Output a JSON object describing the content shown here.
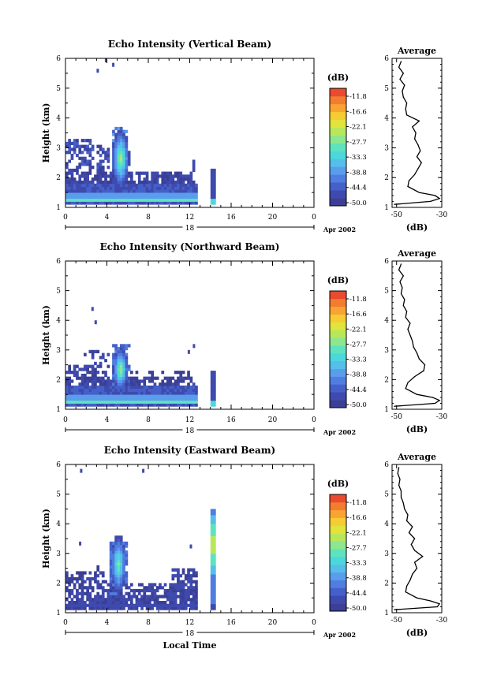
{
  "figure": {
    "xlabel": "Local Time",
    "date_label": "Apr 2002",
    "day_label": "18",
    "cbar_unit": "(dB)",
    "avg_title": "Average",
    "avg_xlabel": "(dB)"
  },
  "chart_data": [
    {
      "type": "heatmap",
      "title": "Echo Intensity (Vertical Beam)",
      "xlabel": "",
      "ylabel": "Height (km)",
      "xlim": [
        0,
        24
      ],
      "ylim": [
        1,
        6
      ],
      "x_ticks": [
        "0",
        "4",
        "8",
        "12",
        "16",
        "20",
        "0"
      ],
      "y_ticks": [
        "1",
        "2",
        "3",
        "4",
        "5",
        "6"
      ],
      "colorbar": {
        "unit": "(dB)",
        "tick_labels": [
          "-11.8",
          "-16.6",
          "-22.1",
          "-27.7",
          "-33.3",
          "-38.8",
          "-44.4",
          "-50.0"
        ],
        "range": [
          -50.0,
          -11.8
        ]
      },
      "data_extent": {
        "time_range_h": [
          0,
          14.4
        ],
        "height_range_km": [
          1.1,
          4.6
        ]
      },
      "peak": {
        "time_h": 5.2,
        "height_km": 2.6,
        "intensity_db": -27.7
      },
      "average_profile": {
        "title": "Average",
        "xlabel": "(dB)",
        "x_ticks": [
          "-50",
          "-30"
        ],
        "xlim": [
          -52,
          -30
        ],
        "heights_km": [
          1.1,
          1.2,
          1.3,
          1.4,
          1.5,
          1.7,
          1.9,
          2.1,
          2.3,
          2.5,
          2.7,
          2.9,
          3.1,
          3.3,
          3.5,
          3.7,
          3.9,
          4.1,
          4.3,
          4.5,
          4.7,
          4.9,
          5.1,
          5.3,
          5.5,
          5.7,
          5.9
        ],
        "values_db": [
          -51,
          -35,
          -31,
          -33,
          -40,
          -45,
          -44.5,
          -42,
          -40.5,
          -39,
          -41,
          -39.5,
          -40.5,
          -42,
          -41.5,
          -43,
          -40,
          -45.5,
          -46,
          -45.5,
          -47,
          -47.5,
          -46.5,
          -48.5,
          -47,
          -49,
          -48
        ]
      }
    },
    {
      "type": "heatmap",
      "title": "Echo Intensity (Northward Beam)",
      "xlabel": "",
      "ylabel": "Height (km)",
      "xlim": [
        0,
        24
      ],
      "ylim": [
        1,
        6
      ],
      "x_ticks": [
        "0",
        "4",
        "8",
        "12",
        "16",
        "20",
        "0"
      ],
      "y_ticks": [
        "1",
        "2",
        "3",
        "4",
        "5",
        "6"
      ],
      "colorbar": {
        "unit": "(dB)",
        "tick_labels": [
          "-11.8",
          "-16.6",
          "-22.1",
          "-27.7",
          "-33.3",
          "-38.8",
          "-44.4",
          "-50.0"
        ],
        "range": [
          -50.0,
          -11.8
        ]
      },
      "data_extent": {
        "time_range_h": [
          0,
          14.4
        ],
        "height_range_km": [
          1.1,
          4.4
        ]
      },
      "peak": {
        "time_h": 5.2,
        "height_km": 2.3,
        "intensity_db": -27.7
      },
      "average_profile": {
        "title": "Average",
        "xlabel": "(dB)",
        "x_ticks": [
          "-50",
          "-30"
        ],
        "xlim": [
          -52,
          -30
        ],
        "heights_km": [
          1.1,
          1.2,
          1.3,
          1.4,
          1.5,
          1.7,
          1.9,
          2.1,
          2.3,
          2.5,
          2.7,
          2.9,
          3.1,
          3.3,
          3.5,
          3.7,
          3.9,
          4.1,
          4.3,
          4.5,
          4.7,
          4.9,
          5.1,
          5.3,
          5.5,
          5.7,
          5.9
        ],
        "values_db": [
          -51,
          -33,
          -31,
          -34,
          -41,
          -46,
          -45,
          -42,
          -38,
          -37.5,
          -40,
          -41,
          -42.5,
          -43,
          -44,
          -45,
          -44,
          -46,
          -45.5,
          -47,
          -46.5,
          -48,
          -47.5,
          -48.5,
          -47,
          -49,
          -48
        ]
      }
    },
    {
      "type": "heatmap",
      "title": "Echo Intensity (Eastward Beam)",
      "xlabel": "Local Time",
      "ylabel": "Height (km)",
      "xlim": [
        0,
        24
      ],
      "ylim": [
        1,
        6
      ],
      "x_ticks": [
        "0",
        "4",
        "8",
        "12",
        "16",
        "20",
        "0"
      ],
      "y_ticks": [
        "1",
        "2",
        "3",
        "4",
        "5",
        "6"
      ],
      "colorbar": {
        "unit": "(dB)",
        "tick_labels": [
          "-11.8",
          "-16.6",
          "-22.1",
          "-27.7",
          "-33.3",
          "-38.8",
          "-44.4",
          "-50.0"
        ],
        "range": [
          -50.0,
          -11.8
        ]
      },
      "data_extent": {
        "time_range_h": [
          0,
          14.5
        ],
        "height_range_km": [
          1.1,
          5.8
        ]
      },
      "peak": {
        "time_h": 14.1,
        "height_km": 3.3,
        "intensity_db": -27.7
      },
      "average_profile": {
        "title": "Average",
        "xlabel": "(dB)",
        "x_ticks": [
          "-50",
          "-30"
        ],
        "xlim": [
          -52,
          -30
        ],
        "heights_km": [
          1.1,
          1.2,
          1.3,
          1.4,
          1.5,
          1.7,
          1.9,
          2.1,
          2.3,
          2.5,
          2.7,
          2.9,
          3.1,
          3.3,
          3.5,
          3.7,
          3.9,
          4.1,
          4.3,
          4.5,
          4.7,
          4.9,
          5.1,
          5.3,
          5.5,
          5.7,
          5.9
        ],
        "values_db": [
          -51,
          -32,
          -31,
          -35,
          -41,
          -46,
          -45.5,
          -44,
          -43,
          -41,
          -42,
          -38.5,
          -42,
          -43.5,
          -42,
          -44.5,
          -43,
          -45.5,
          -45,
          -46.5,
          -47,
          -48,
          -48,
          -49,
          -48.5,
          -49.5,
          -49
        ]
      }
    }
  ],
  "colors": {
    "scale": [
      "#3b3f95",
      "#3f4aae",
      "#4560c8",
      "#4f7ee0",
      "#5a9ded",
      "#55bfe9",
      "#4bd8dc",
      "#5fe3bd",
      "#8ce790",
      "#b9e75a",
      "#e0e43c",
      "#f6cb34",
      "#f8a432",
      "#f37c30",
      "#ea4a2d"
    ]
  }
}
